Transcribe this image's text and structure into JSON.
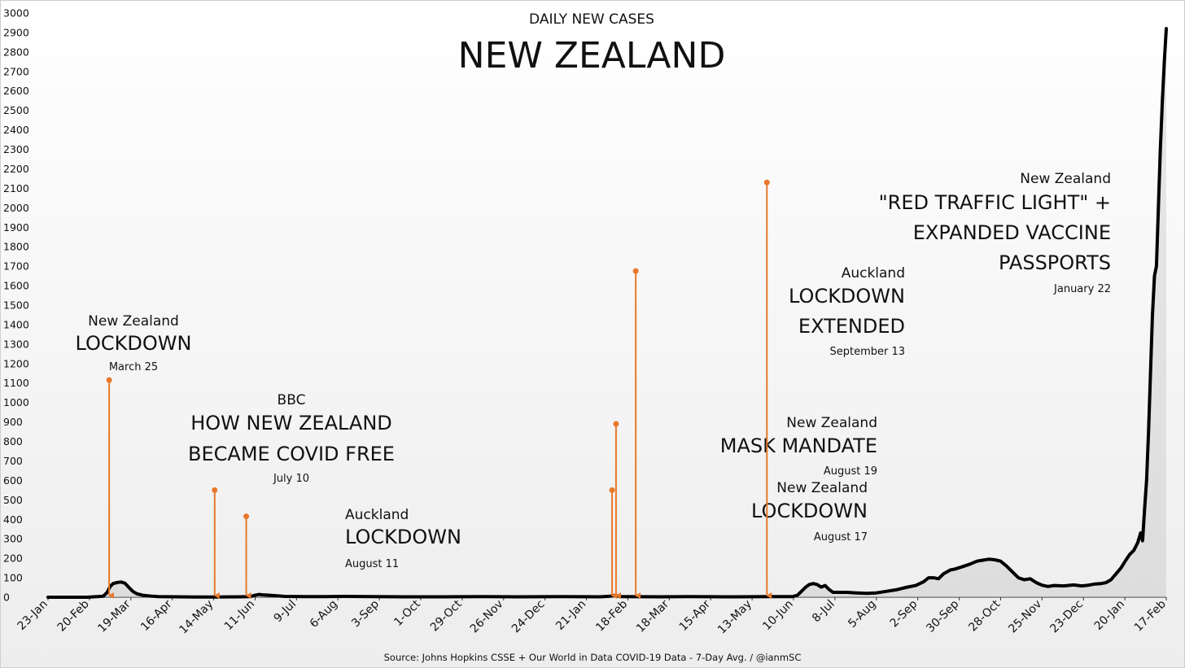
{
  "chart_data": {
    "type": "area",
    "title_top": "DAILY NEW CASES",
    "title": "NEW ZEALAND",
    "source": "Source: Johns Hopkins CSSE + Our World in Data COVID-19 Data - 7-Day Avg. / @ianmSC",
    "xlabel": "",
    "ylabel": "",
    "ylim": [
      0,
      3000
    ],
    "yticks": [
      0,
      100,
      200,
      300,
      400,
      500,
      600,
      700,
      800,
      900,
      1000,
      1100,
      1200,
      1300,
      1400,
      1500,
      1600,
      1700,
      1800,
      1900,
      2000,
      2100,
      2200,
      2300,
      2400,
      2500,
      2600,
      2700,
      2800,
      2900,
      3000
    ],
    "xticks": [
      "23-Jan",
      "20-Feb",
      "19-Mar",
      "16-Apr",
      "14-May",
      "11-Jun",
      "9-Jul",
      "6-Aug",
      "3-Sep",
      "1-Oct",
      "29-Oct",
      "26-Nov",
      "24-Dec",
      "21-Jan",
      "18-Feb",
      "18-Mar",
      "15-Apr",
      "13-May",
      "10-Jun",
      "8-Jul",
      "5-Aug",
      "2-Sep",
      "30-Sep",
      "28-Oct",
      "25-Nov",
      "23-Dec",
      "20-Jan",
      "17-Feb"
    ],
    "grid": false,
    "legend": "none",
    "series": [
      {
        "line_color": "#000000",
        "fill_color": "#bdbdbd",
        "points": [
          [
            0,
            0
          ],
          [
            40,
            0
          ],
          [
            56,
            5
          ],
          [
            60,
            25
          ],
          [
            63,
            55
          ],
          [
            66,
            70
          ],
          [
            70,
            75
          ],
          [
            74,
            78
          ],
          [
            78,
            72
          ],
          [
            82,
            50
          ],
          [
            86,
            30
          ],
          [
            90,
            18
          ],
          [
            96,
            10
          ],
          [
            104,
            6
          ],
          [
            112,
            3
          ],
          [
            130,
            2
          ],
          [
            150,
            1
          ],
          [
            170,
            1
          ],
          [
            195,
            2
          ],
          [
            205,
            3
          ],
          [
            210,
            10
          ],
          [
            214,
            14
          ],
          [
            218,
            12
          ],
          [
            225,
            10
          ],
          [
            232,
            7
          ],
          [
            240,
            4
          ],
          [
            260,
            3
          ],
          [
            280,
            3
          ],
          [
            300,
            4
          ],
          [
            330,
            3
          ],
          [
            360,
            2
          ],
          [
            400,
            2
          ],
          [
            440,
            3
          ],
          [
            480,
            2
          ],
          [
            520,
            3
          ],
          [
            560,
            2
          ],
          [
            570,
            5
          ],
          [
            575,
            10
          ],
          [
            580,
            3
          ],
          [
            620,
            2
          ],
          [
            650,
            3
          ],
          [
            700,
            2
          ],
          [
            730,
            3
          ],
          [
            755,
            3
          ],
          [
            760,
            10
          ],
          [
            764,
            30
          ],
          [
            768,
            50
          ],
          [
            772,
            65
          ],
          [
            776,
            70
          ],
          [
            780,
            65
          ],
          [
            784,
            52
          ],
          [
            788,
            60
          ],
          [
            792,
            40
          ],
          [
            796,
            25
          ],
          [
            800,
            25
          ],
          [
            810,
            25
          ],
          [
            820,
            22
          ],
          [
            830,
            20
          ],
          [
            840,
            22
          ],
          [
            850,
            30
          ],
          [
            860,
            38
          ],
          [
            870,
            50
          ],
          [
            880,
            60
          ],
          [
            888,
            80
          ],
          [
            893,
            100
          ],
          [
            898,
            100
          ],
          [
            903,
            95
          ],
          [
            908,
            120
          ],
          [
            915,
            140
          ],
          [
            920,
            145
          ],
          [
            928,
            158
          ],
          [
            935,
            170
          ],
          [
            942,
            185
          ],
          [
            948,
            190
          ],
          [
            954,
            195
          ],
          [
            960,
            192
          ],
          [
            966,
            185
          ],
          [
            972,
            160
          ],
          [
            978,
            130
          ],
          [
            984,
            100
          ],
          [
            990,
            90
          ],
          [
            996,
            95
          ],
          [
            1002,
            75
          ],
          [
            1008,
            62
          ],
          [
            1014,
            55
          ],
          [
            1020,
            60
          ],
          [
            1030,
            58
          ],
          [
            1040,
            63
          ],
          [
            1048,
            58
          ],
          [
            1055,
            62
          ],
          [
            1062,
            68
          ],
          [
            1068,
            70
          ],
          [
            1073,
            75
          ],
          [
            1078,
            90
          ],
          [
            1083,
            120
          ],
          [
            1088,
            150
          ],
          [
            1093,
            190
          ],
          [
            1097,
            220
          ],
          [
            1101,
            240
          ],
          [
            1105,
            280
          ],
          [
            1108,
            330
          ],
          [
            1110,
            290
          ],
          [
            1112,
            450
          ],
          [
            1114,
            600
          ],
          [
            1116,
            850
          ],
          [
            1118,
            1150
          ],
          [
            1120,
            1450
          ],
          [
            1122,
            1650
          ],
          [
            1124,
            1700
          ],
          [
            1126,
            2000
          ],
          [
            1128,
            2300
          ],
          [
            1130,
            2550
          ],
          [
            1132,
            2750
          ],
          [
            1134,
            2920
          ]
        ]
      }
    ],
    "annotations": [
      {
        "line1": "New Zealand",
        "headline": [
          "LOCKDOWN"
        ],
        "date": "March 25",
        "x": 62,
        "y_top": 1115,
        "color": "#e8782b"
      },
      {
        "line1": "BBC",
        "headline": [
          "HOW NEW ZEALAND",
          "BECAME COVID FREE"
        ],
        "date": "July 10",
        "x": 169,
        "y_top": 550,
        "color": "#e8782b"
      },
      {
        "line1": "Auckland",
        "headline": [
          "LOCKDOWN"
        ],
        "date": "August 11",
        "x": 201,
        "y_top": 415,
        "color": "#e8782b"
      },
      {
        "line1": "New Zealand",
        "headline": [
          "LOCKDOWN"
        ],
        "date": "August 17",
        "x": 572,
        "y_top": 550,
        "color": "#e8782b"
      },
      {
        "line1": "New Zealand",
        "headline": [
          "MASK MANDATE"
        ],
        "date": "August 19",
        "x": 576,
        "y_top": 890,
        "color": "#e8782b"
      },
      {
        "line1": "Auckland",
        "headline": [
          "LOCKDOWN",
          "EXTENDED"
        ],
        "date": "September 13",
        "x": 596,
        "y_top": 1675,
        "color": "#e8782b"
      },
      {
        "line1": "New Zealand",
        "headline": [
          "\"RED TRAFFIC LIGHT\" +",
          "EXPANDED VACCINE",
          "PASSPORTS"
        ],
        "date": "January 22",
        "x": 729,
        "y_top": 2130,
        "color": "#e8782b"
      }
    ]
  }
}
